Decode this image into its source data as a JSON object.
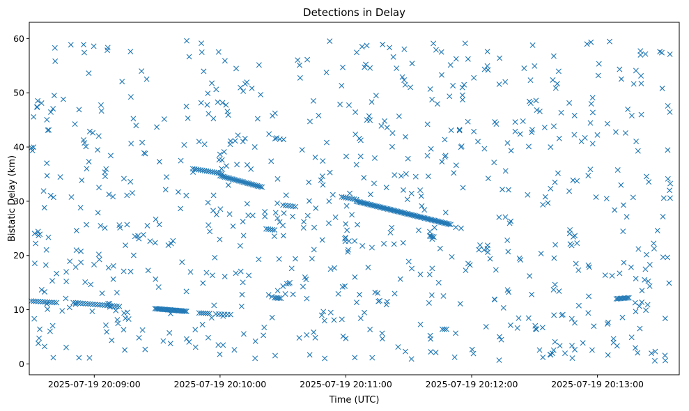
{
  "chart_data": {
    "type": "scatter",
    "title": "Detections in Delay",
    "xlabel": "Time (UTC)",
    "ylabel": "Bistatic Delay (km)",
    "xlim": [
      "2025-07-19 20:08:29",
      "2025-07-19 20:13:39"
    ],
    "ylim": [
      -2,
      63
    ],
    "xticks": [
      {
        "time": "2025-07-19 20:09:00",
        "label": "2025-07-19 20:09:00"
      },
      {
        "time": "2025-07-19 20:10:00",
        "label": "2025-07-19 20:10:00"
      },
      {
        "time": "2025-07-19 20:11:00",
        "label": "2025-07-19 20:11:00"
      },
      {
        "time": "2025-07-19 20:12:00",
        "label": "2025-07-19 20:12:00"
      },
      {
        "time": "2025-07-19 20:13:00",
        "label": "2025-07-19 20:13:00"
      }
    ],
    "yticks": [
      0,
      10,
      20,
      30,
      40,
      50,
      60
    ],
    "grid": false,
    "marker": "x",
    "color": "#1f77b4",
    "series": [
      {
        "tracks": [
          {
            "start": "2025-07-19 20:08:30",
            "end": "2025-07-19 20:08:42",
            "y_start": 11.6,
            "y_end": 11.3,
            "count": 12
          },
          {
            "start": "2025-07-19 20:08:50",
            "end": "2025-07-19 20:09:12",
            "y_start": 11.3,
            "y_end": 10.6,
            "count": 20
          },
          {
            "start": "2025-07-19 20:09:29",
            "end": "2025-07-19 20:09:44",
            "y_start": 10.2,
            "y_end": 9.7,
            "count": 26
          },
          {
            "start": "2025-07-19 20:09:50",
            "end": "2025-07-19 20:09:55",
            "y_start": 9.4,
            "y_end": 9.3,
            "count": 6
          },
          {
            "start": "2025-07-19 20:09:58",
            "end": "2025-07-19 20:10:05",
            "y_start": 9.2,
            "y_end": 9.1,
            "count": 6
          },
          {
            "start": "2025-07-19 20:09:47",
            "end": "2025-07-19 20:10:01",
            "y_start": 36.0,
            "y_end": 35.1,
            "count": 16
          },
          {
            "start": "2025-07-19 20:10:00",
            "end": "2025-07-19 20:10:20",
            "y_start": 34.7,
            "y_end": 32.6,
            "count": 28
          },
          {
            "start": "2025-07-19 20:10:22",
            "end": "2025-07-19 20:10:26",
            "y_start": 24.9,
            "y_end": 24.7,
            "count": 5
          },
          {
            "start": "2025-07-19 20:10:26",
            "end": "2025-07-19 20:10:29",
            "y_start": 12.2,
            "y_end": 12.1,
            "count": 5
          },
          {
            "start": "2025-07-19 20:10:30",
            "end": "2025-07-19 20:10:36",
            "y_start": 29.3,
            "y_end": 29.0,
            "count": 6
          },
          {
            "start": "2025-07-19 20:10:58",
            "end": "2025-07-19 20:11:05",
            "y_start": 30.8,
            "y_end": 30.3,
            "count": 8
          },
          {
            "start": "2025-07-19 20:11:05",
            "end": "2025-07-19 20:11:50",
            "y_start": 30.0,
            "y_end": 25.7,
            "count": 70
          },
          {
            "start": "2025-07-19 20:11:40",
            "end": "2025-07-19 20:11:42",
            "y_start": 23.6,
            "y_end": 23.4,
            "count": 4
          },
          {
            "start": "2025-07-19 20:11:46",
            "end": "2025-07-19 20:11:48",
            "y_start": 6.4,
            "y_end": 6.4,
            "count": 3
          },
          {
            "start": "2025-07-19 20:13:09",
            "end": "2025-07-19 20:13:15",
            "y_start": 12.0,
            "y_end": 12.2,
            "count": 10
          }
        ],
        "clutter": {
          "start": "2025-07-19 20:08:30",
          "end": "2025-07-19 20:13:35",
          "y_min": 0.5,
          "y_max": 60.0,
          "count": 760
        }
      }
    ]
  }
}
